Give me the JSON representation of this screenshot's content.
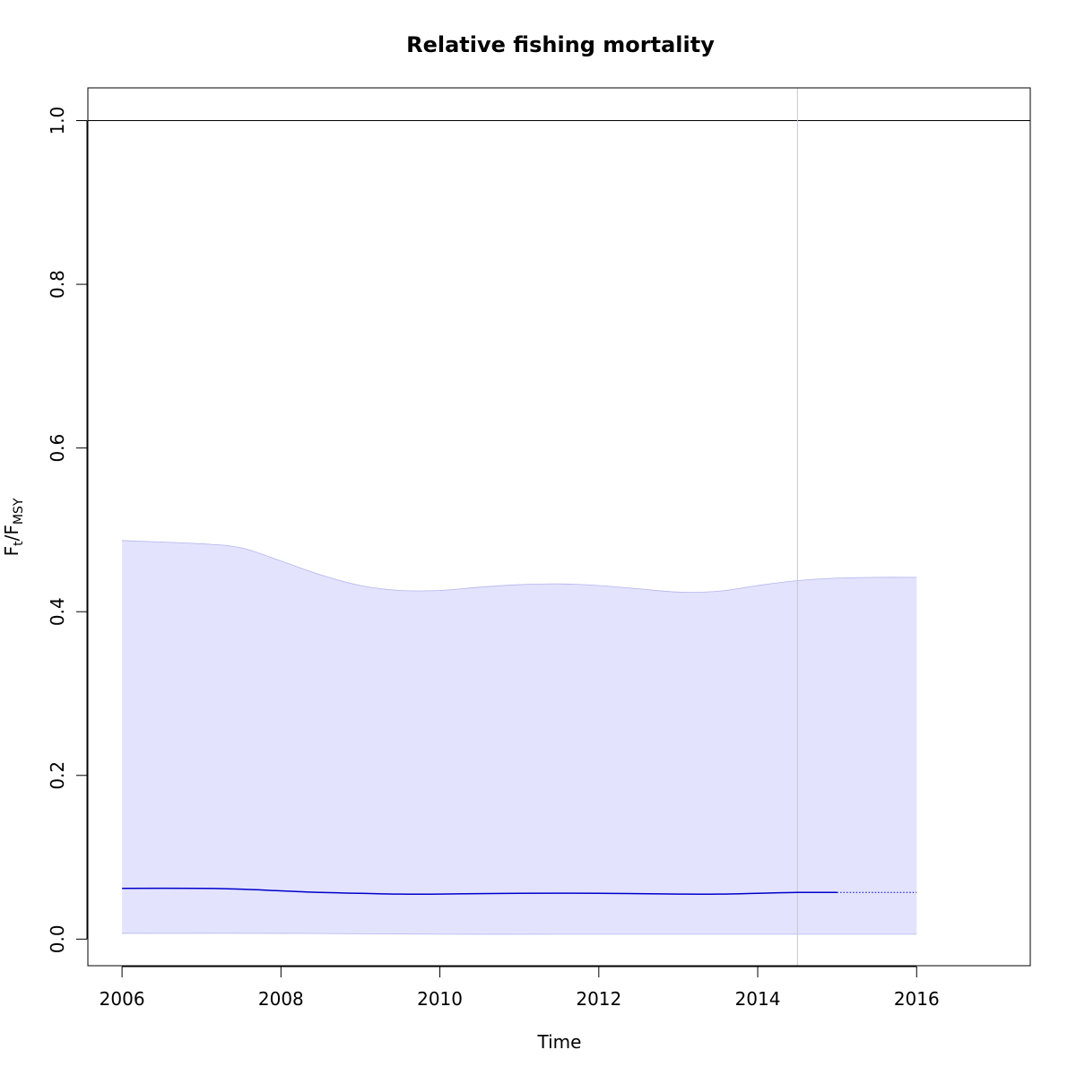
{
  "chart_data": {
    "type": "line",
    "title": "Relative fishing mortality",
    "xlabel": "Time",
    "ylabel": {
      "main": "F",
      "sub1": "t",
      "sep": "/F",
      "sub2": "MSY"
    },
    "xlim": [
      2005.57,
      2017.43
    ],
    "ylim": [
      -0.0325,
      1.04
    ],
    "xticks": [
      2006,
      2008,
      2010,
      2012,
      2014,
      2016
    ],
    "yticks": [
      0.0,
      0.2,
      0.4,
      0.6,
      0.8,
      1.0
    ],
    "ytick_labels": [
      "0.0",
      "0.2",
      "0.4",
      "0.6",
      "0.8",
      "1.0"
    ],
    "reference_line_y": 1.0,
    "vertical_line_x": 2014.5,
    "forecast_start_x": 2015,
    "colors": {
      "estimate": "#0000cc",
      "ci_fill": "#e3e3fd",
      "ci_border": "#b4b4ee",
      "vertical_line": "#c8c8d0",
      "reference_line": "#000000"
    },
    "series": [
      {
        "role": "estimate",
        "x": [
          2006,
          2007,
          2007.5,
          2008,
          2008.5,
          2009,
          2009.5,
          2010,
          2011,
          2012,
          2013,
          2013.5,
          2014,
          2014.5,
          2015
        ],
        "y": [
          0.062,
          0.062,
          0.061,
          0.059,
          0.057,
          0.056,
          0.055,
          0.055,
          0.056,
          0.056,
          0.055,
          0.055,
          0.056,
          0.057,
          0.057
        ]
      },
      {
        "role": "forecast",
        "x": [
          2015,
          2015.5,
          2016
        ],
        "y": [
          0.057,
          0.057,
          0.057
        ]
      },
      {
        "role": "ci_upper",
        "x": [
          2006,
          2007,
          2007.5,
          2008,
          2008.5,
          2009,
          2009.5,
          2010,
          2010.5,
          2011,
          2011.5,
          2012,
          2012.5,
          2013,
          2013.5,
          2014,
          2014.5,
          2015,
          2015.5,
          2016
        ],
        "y": [
          0.487,
          0.483,
          0.478,
          0.462,
          0.445,
          0.432,
          0.426,
          0.426,
          0.43,
          0.433,
          0.434,
          0.432,
          0.428,
          0.424,
          0.425,
          0.432,
          0.438,
          0.441,
          0.442,
          0.442
        ]
      },
      {
        "role": "ci_lower",
        "x": [
          2006,
          2008,
          2010,
          2012,
          2014,
          2016
        ],
        "y": [
          0.007,
          0.007,
          0.006,
          0.006,
          0.006,
          0.006
        ]
      }
    ]
  }
}
